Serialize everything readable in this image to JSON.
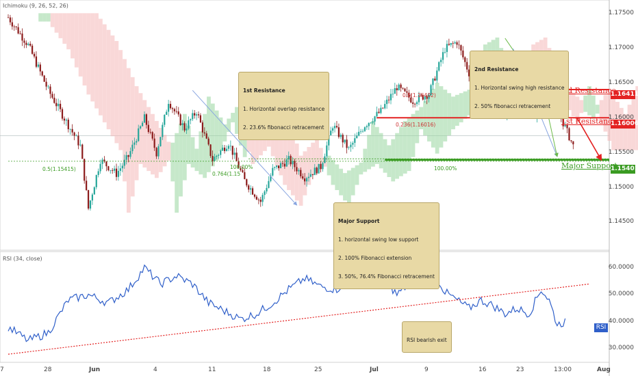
{
  "indicator_title": "Ichimoku (9, 26, 52, 26)",
  "rsi_title": "RSI (34, close)",
  "rsi_tag": "RSI",
  "colors": {
    "up": "#26a69a",
    "down": "#8b1a1a",
    "resistance": "#e32222",
    "support": "#3a9b22",
    "rsi_line": "#2f5fc9",
    "trend": "#e32222",
    "cloud_bull": "#98d69e",
    "cloud_bear": "#f4b8b8"
  },
  "levels": {
    "resistance2": {
      "label": "2nd Resistance",
      "value": "1.16411"
    },
    "resistance1": {
      "label": "1st Resistance",
      "value": "1.16006"
    },
    "support": {
      "label": "Major Support",
      "value": "1.15401"
    }
  },
  "fib_labels": [
    "0.5(1.16402)",
    "0.236(1.16016)",
    "100.00%",
    "0.5(1.15415)",
    "100.00%",
    "0.764(1.15"
  ],
  "notes": {
    "r1": {
      "title": "1st Resistance",
      "lines": [
        "1. Horizontal overlap resistance",
        "2. 23.6% fibonacci retracement"
      ]
    },
    "r2": {
      "title": "2nd Resistance",
      "lines": [
        "1. Horizontal swing high resistance",
        "2. 50% fibonacci retracement"
      ]
    },
    "sup": {
      "title": "Major Support",
      "lines": [
        "1. horizontal swing low support",
        "2. 100% Fibonacci extension",
        "3. 50%, 76.4% Fibonacci retracement"
      ]
    },
    "rsi": {
      "title": "RSI bearish exit",
      "lines": []
    }
  },
  "chart_data": [
    {
      "type": "candlestick",
      "ylim": [
        1.141,
        1.177
      ],
      "ytick_labels": [
        "1.17500",
        "1.17000",
        "1.16500",
        "1.16000",
        "1.15500",
        "1.15000",
        "1.14500"
      ],
      "xtick_labels": [
        "28",
        "Jun",
        "4",
        "11",
        "18",
        "25",
        "Jul",
        "9",
        "16",
        "23",
        "13:00",
        "Aug",
        "7"
      ],
      "price_path": [
        [
          0,
          1.1745
        ],
        [
          5,
          1.1705
        ],
        [
          10,
          1.164
        ],
        [
          14,
          1.16
        ],
        [
          18,
          1.156
        ],
        [
          20,
          1.147
        ],
        [
          23,
          1.154
        ],
        [
          27,
          1.152
        ],
        [
          30,
          1.1545
        ],
        [
          34,
          1.16
        ],
        [
          37,
          1.155
        ],
        [
          40,
          1.1625
        ],
        [
          44,
          1.1585
        ],
        [
          47,
          1.161
        ],
        [
          51,
          1.154
        ],
        [
          55,
          1.1565
        ],
        [
          59,
          1.151
        ],
        [
          63,
          1.148
        ],
        [
          66,
          1.1525
        ],
        [
          70,
          1.154
        ],
        [
          74,
          1.1515
        ],
        [
          78,
          1.153
        ],
        [
          81,
          1.159
        ],
        [
          85,
          1.1555
        ],
        [
          89,
          1.159
        ],
        [
          93,
          1.161
        ],
        [
          97,
          1.1645
        ],
        [
          101,
          1.1625
        ],
        [
          105,
          1.1635
        ],
        [
          109,
          1.17
        ],
        [
          112,
          1.171
        ],
        [
          116,
          1.165
        ],
        [
          120,
          1.1625
        ],
        [
          124,
          1.1605
        ],
        [
          128,
          1.1635
        ],
        [
          132,
          1.16
        ],
        [
          135,
          1.164
        ],
        [
          138,
          1.16
        ],
        [
          141,
          1.156
        ]
      ]
    },
    {
      "type": "line",
      "title": "RSI (34, close)",
      "ylim": [
        25,
        66
      ],
      "ytick_labels": [
        "60.0000",
        "50.0000",
        "40.0000",
        "30.0000"
      ],
      "values": [
        [
          0,
          38
        ],
        [
          5,
          33
        ],
        [
          10,
          36
        ],
        [
          15,
          48
        ],
        [
          20,
          50
        ],
        [
          25,
          47
        ],
        [
          30,
          52
        ],
        [
          34,
          60
        ],
        [
          38,
          54
        ],
        [
          42,
          57
        ],
        [
          46,
          54
        ],
        [
          50,
          47
        ],
        [
          54,
          44
        ],
        [
          58,
          41
        ],
        [
          62,
          43
        ],
        [
          66,
          47
        ],
        [
          70,
          52
        ],
        [
          74,
          56
        ],
        [
          78,
          53
        ],
        [
          82,
          52
        ],
        [
          86,
          57
        ],
        [
          90,
          60
        ],
        [
          94,
          56
        ],
        [
          97,
          50
        ],
        [
          100,
          54
        ],
        [
          103,
          63
        ],
        [
          106,
          59
        ],
        [
          109,
          51
        ],
        [
          112,
          48
        ],
        [
          115,
          45
        ],
        [
          118,
          48
        ],
        [
          121,
          46
        ],
        [
          124,
          43
        ],
        [
          127,
          45
        ],
        [
          130,
          43
        ],
        [
          133,
          52
        ],
        [
          135,
          48
        ],
        [
          137,
          39
        ],
        [
          139,
          40
        ]
      ],
      "trendline": [
        [
          0,
          28
        ],
        [
          145,
          54
        ]
      ]
    }
  ]
}
